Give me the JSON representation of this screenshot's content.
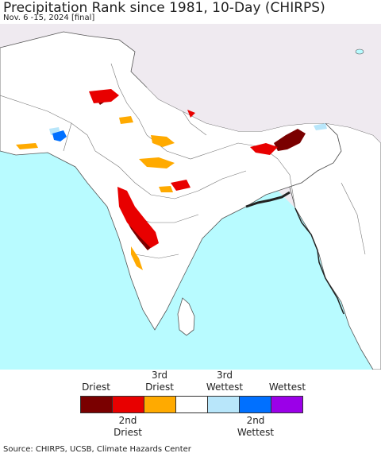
{
  "title": "Precipitation Rank since 1981, 10-Day (CHIRPS)",
  "subtitle": "Nov. 6 -15, 2024 [final]",
  "map": {
    "ocean_color": "#b8fbff",
    "land_color": "#ffffff",
    "outside_color": "#efeaf0",
    "border_color": "#555555"
  },
  "legend": {
    "top_labels": [
      "Driest",
      "3rd\nDriest",
      "3rd\nWettest",
      "Wettest"
    ],
    "bottom_labels": [
      "2nd\nDriest",
      "2nd\nWettest"
    ],
    "colors": [
      "#7a0000",
      "#e80000",
      "#ffaa00",
      "#ffffff",
      "#b8e6fa",
      "#0070ff",
      "#9b00e8"
    ]
  },
  "source": "Source: CHIRPS, UCSB, Climate Hazards Center"
}
